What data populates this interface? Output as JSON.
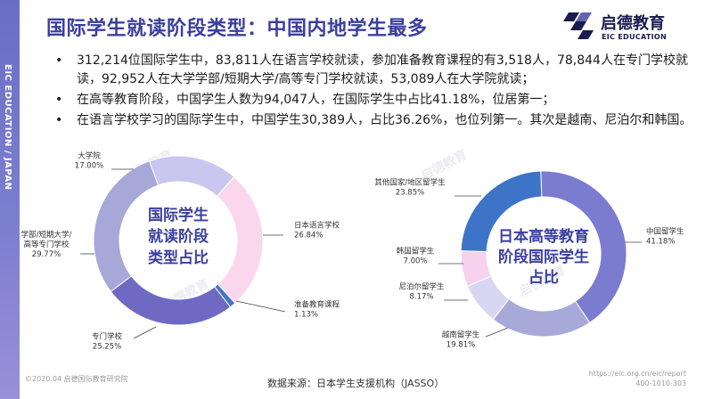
{
  "sidebar": {
    "text": "EIC EDUCATION / JAPAN"
  },
  "title": "国际学生就读阶段类型：中国内地学生最多",
  "logo": {
    "name": "启德教育",
    "sub": "EIC EDUCATION",
    "icon": "eic-logo-icon"
  },
  "bullets": [
    "312,214位国际学生中，83,811人在语言学校就读，参加准备教育课程的有3,518人，78,844人在专门学校就读，92,952人在大学学部/短期大学/高等专门学校就读，53,089人在大学院就读；",
    "在高等教育阶段，中国学生人数为94,047人，在国际学生中占比41.18%，位居第一；",
    "在语言学校学习的国际学生中，中国学生30,389人，占比36.26%，也位列第一。其次是越南、尼泊尔和韩国。"
  ],
  "chart_data": [
    {
      "type": "pie",
      "variant": "donut",
      "center_label": [
        "国际学生",
        "就读阶段",
        "类型占比"
      ],
      "categories": [
        "大学院",
        "日本语言学校",
        "准备教育课程",
        "专门学校",
        "学部/短期大学/高等专门学校"
      ],
      "values": [
        17.0,
        26.84,
        1.13,
        25.25,
        29.77
      ],
      "labels": [
        [
          "大学院",
          "17.00%"
        ],
        [
          "日本语言学校",
          "26.84%"
        ],
        [
          "准备教育课程",
          "1.13%"
        ],
        [
          "专门学校",
          "25.25%"
        ],
        [
          "学部/短期大学/",
          "高等专门学校",
          "29.77%"
        ]
      ],
      "colors": [
        "#c9c7ef",
        "#fbd7ee",
        "#3f77c9",
        "#6e6ac4",
        "#a6a8d8"
      ]
    },
    {
      "type": "pie",
      "variant": "donut",
      "center_label": [
        "日本高等教育",
        "阶段国际学生",
        "占比"
      ],
      "categories": [
        "中国留学生",
        "越南留学生",
        "尼泊尔留学生",
        "韩国留学生",
        "其他国家/地区留学生"
      ],
      "values": [
        41.18,
        19.81,
        8.17,
        7.0,
        23.85
      ],
      "labels": [
        [
          "中国留学生",
          "41.18%"
        ],
        [
          "越南留学生",
          "19.81%"
        ],
        [
          "尼泊尔留学生",
          "8.17%"
        ],
        [
          "韩国留学生",
          "7.00%"
        ],
        [
          "其他国家/地区留学生",
          "23.85%"
        ]
      ],
      "colors": [
        "#7b7bd0",
        "#a7aad8",
        "#d9d6f2",
        "#f6d2ee",
        "#3d74c8"
      ]
    }
  ],
  "footer": {
    "left": "©2020.04 启德国际教育研究院",
    "source": "数据来源：日本学生支援机构（JASSO）",
    "url": "https://eic.org.cn/eic/report",
    "phone": "400-1010-303"
  }
}
